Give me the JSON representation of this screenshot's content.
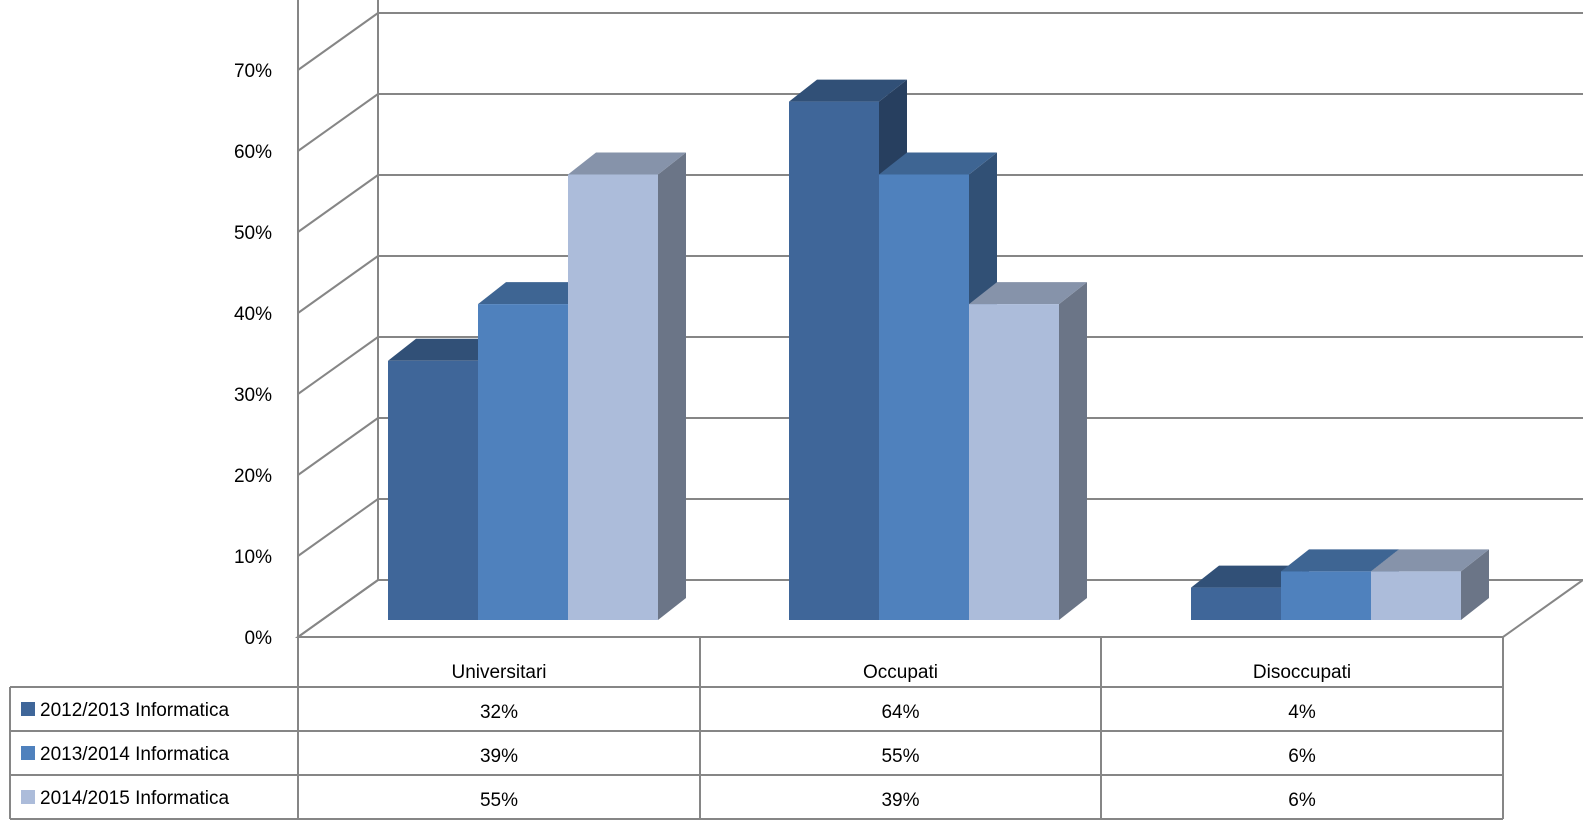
{
  "chart_data": {
    "type": "bar",
    "variant": "3d-clustered-column-with-data-table",
    "categories": [
      "Universitari",
      "Occupati",
      "Disoccupati"
    ],
    "series": [
      {
        "name": "2012/2013 Informatica",
        "values": [
          32,
          64,
          4
        ],
        "color": "#3F6699",
        "labels": [
          "32%",
          "64%",
          "4%"
        ]
      },
      {
        "name": "2013/2014 Informatica",
        "values": [
          39,
          55,
          6
        ],
        "color": "#4F81BD",
        "labels": [
          "39%",
          "55%",
          "6%"
        ]
      },
      {
        "name": "2014/2015 Informatica",
        "values": [
          55,
          39,
          6
        ],
        "color": "#ACBCDA",
        "labels": [
          "55%",
          "39%",
          "6%"
        ]
      }
    ],
    "y_ticks": [
      "0%",
      "10%",
      "20%",
      "30%",
      "40%",
      "50%",
      "60%",
      "70%"
    ],
    "ylim": [
      0,
      70
    ],
    "grid": true,
    "legend": "data-table-left"
  }
}
